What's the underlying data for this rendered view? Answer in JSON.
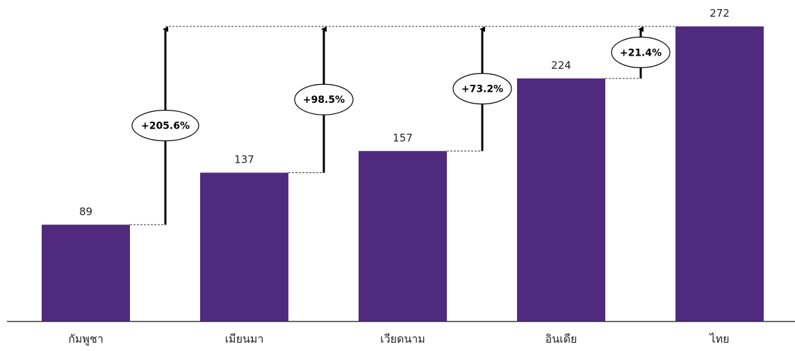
{
  "chart_data": {
    "type": "bar",
    "title": "",
    "xlabel": "",
    "ylabel": "",
    "ylim": [
      0,
      272
    ],
    "categories": [
      "กัมพูชา",
      "เมียนมา",
      "เวียดนาม",
      "อินเดีย",
      "ไทย"
    ],
    "values": [
      89,
      137,
      157,
      224,
      272
    ],
    "value_labels": [
      "89",
      "137",
      "157",
      "224",
      "272"
    ],
    "grid": false,
    "legend": "none",
    "annotations": [
      {
        "from": "กัมพูชา",
        "to": "ไทย",
        "label": "+205.6%"
      },
      {
        "from": "เมียนมา",
        "to": "ไทย",
        "label": "+98.5%"
      },
      {
        "from": "เวียดนาม",
        "to": "ไทย",
        "label": "+73.2%"
      },
      {
        "from": "อินเดีย",
        "to": "ไทย",
        "label": "+21.4%"
      }
    ]
  },
  "colors": {
    "bar": "#4f2a7e",
    "axis": "#333333",
    "arrow": "#000000",
    "dashed_line": "#333333",
    "bubble_fill": "#ffffff",
    "bubble_stroke": "#000000"
  }
}
